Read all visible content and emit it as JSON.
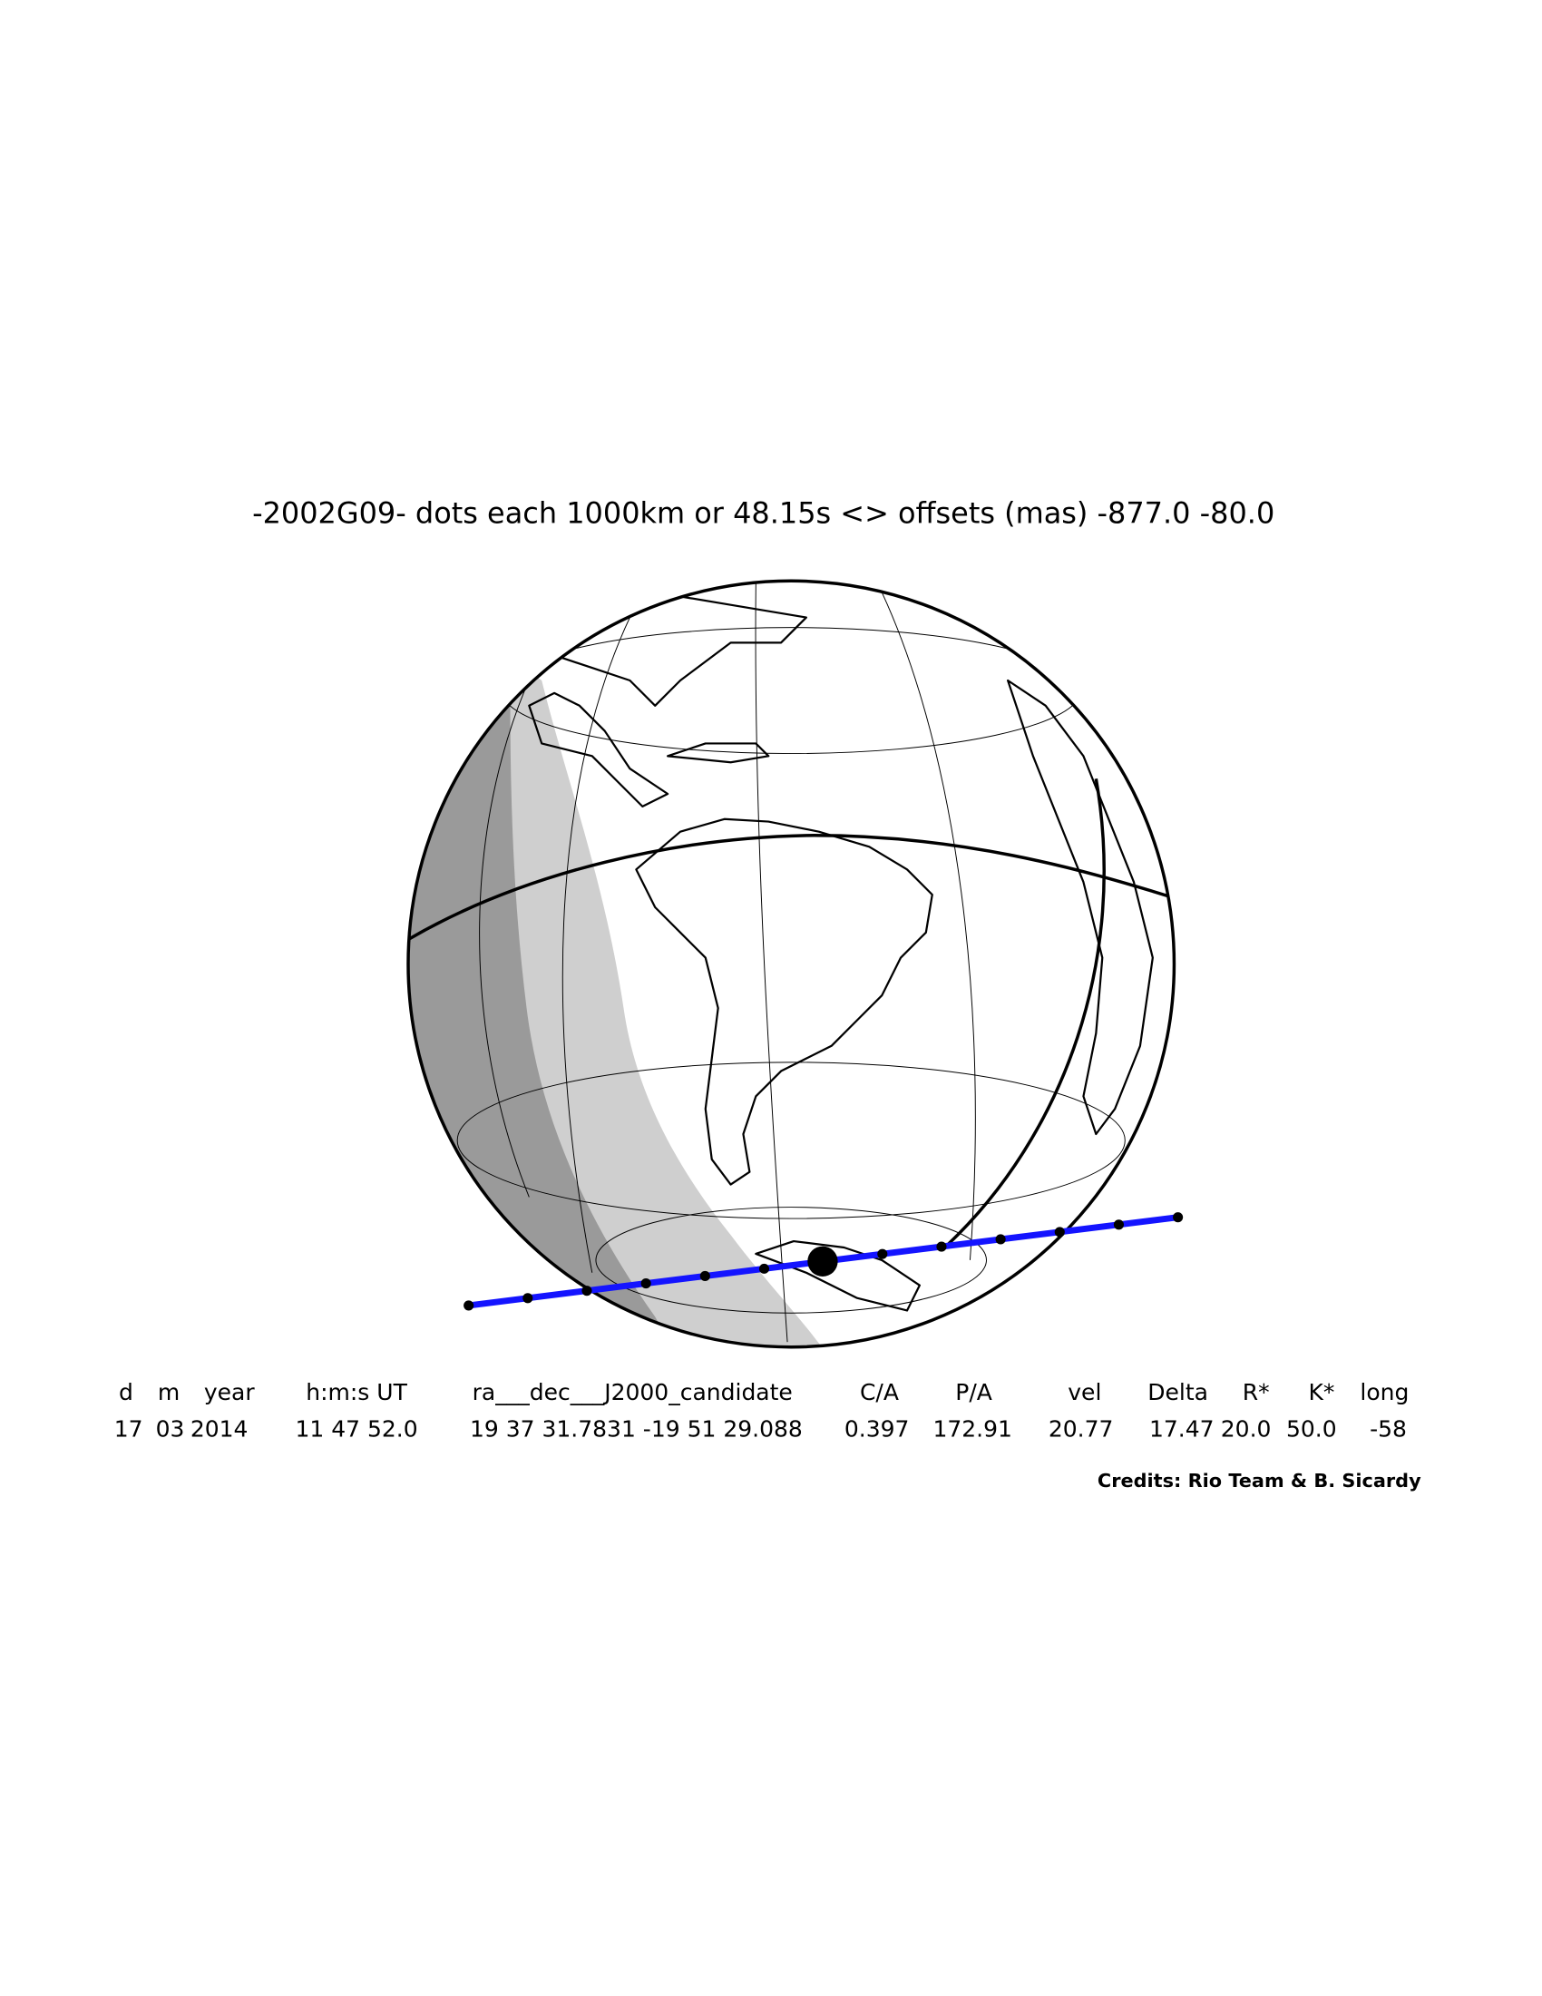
{
  "title": "-2002G09- dots each 1000km or 48.15s <> offsets (mas) -877.0  -80.0",
  "table": {
    "headers": [
      "d",
      "m",
      "year",
      "h:m:s UT",
      "ra___dec___J2000_candidate",
      "C/A",
      "P/A",
      "vel",
      "Delta",
      "R*",
      "K*",
      "long"
    ],
    "values": [
      "17",
      "03",
      "2014",
      "11 47 52.0",
      "19 37 31.7831 -19 51 29.088",
      "0.397",
      "172.91",
      "20.77",
      "17.47",
      "20.0",
      "50.0",
      "-58"
    ]
  },
  "credits": "Credits: Rio Team & B. Sicardy"
}
